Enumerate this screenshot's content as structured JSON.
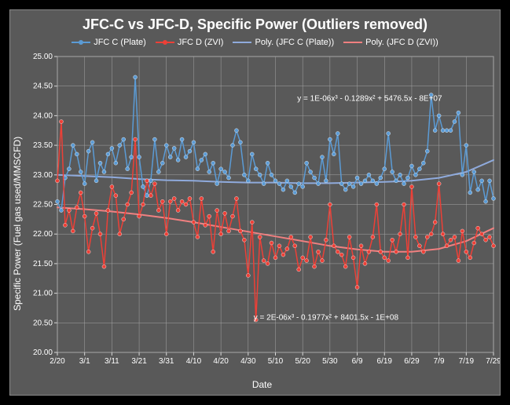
{
  "title": "JFC-C vs JFC-D, Specific Power (Outliers removed)",
  "y_axis": {
    "label": "Specific Power (Fuel gas used/MMSCFD)",
    "ylim": [
      20.0,
      25.0
    ],
    "ytick_step": 0.5,
    "fontsize": 12
  },
  "x_axis": {
    "label": "Date",
    "ticks": [
      "2/20",
      "3/1",
      "3/11",
      "3/21",
      "3/31",
      "4/10",
      "4/20",
      "4/30",
      "5/10",
      "5/20",
      "5/30",
      "6/9",
      "6/19",
      "6/29",
      "7/9",
      "7/19",
      "7/29"
    ],
    "fontsize": 12
  },
  "legend": {
    "items": [
      {
        "label": "JFC C (Plate)",
        "color": "#5b9bd5",
        "style": "line+marker"
      },
      {
        "label": "JFC D (ZVI)",
        "color": "#ed4037",
        "style": "line+marker"
      },
      {
        "label": "Poly. (JFC C (Plate))",
        "color": "#8faadc",
        "style": "line"
      },
      {
        "label": "Poly. (JFC D (ZVI))",
        "color": "#f08080",
        "style": "line"
      }
    ],
    "fontsize": 11
  },
  "equations": {
    "poly_c": "y = 1E-06x³ - 0.1289x² + 5476.5x - 8E+07",
    "poly_d": "y = 2E-06x³ - 0.1977x² + 8401.5x - 1E+08"
  },
  "series_c": {
    "color": "#5b9bd5",
    "marker_radius": 2.5,
    "line_width": 1.5,
    "values": [
      22.55,
      22.4,
      22.95,
      23.1,
      23.5,
      23.35,
      23.05,
      22.85,
      23.4,
      23.55,
      22.9,
      23.2,
      23.05,
      23.35,
      23.45,
      23.2,
      23.5,
      23.6,
      23.1,
      23.3,
      24.65,
      23.3,
      22.8,
      22.65,
      22.9,
      23.6,
      23.05,
      23.2,
      23.5,
      23.3,
      23.45,
      23.25,
      23.6,
      23.3,
      23.4,
      23.55,
      23.1,
      23.25,
      23.35,
      23.05,
      23.2,
      22.85,
      23.1,
      23.05,
      22.95,
      23.5,
      23.75,
      23.55,
      23.0,
      22.9,
      23.35,
      23.1,
      23.0,
      22.85,
      23.2,
      23.0,
      22.9,
      22.85,
      22.75,
      22.9,
      22.8,
      22.7,
      22.85,
      22.8,
      23.2,
      23.05,
      22.95,
      22.85,
      23.3,
      22.9,
      23.6,
      23.35,
      23.7,
      22.85,
      22.75,
      22.85,
      22.8,
      22.95,
      22.85,
      22.9,
      23.0,
      22.9,
      22.85,
      22.95,
      23.1,
      23.7,
      23.05,
      22.9,
      23.0,
      22.85,
      22.95,
      23.15,
      23.0,
      23.1,
      23.2,
      23.4,
      24.35,
      23.75,
      24.0,
      23.75,
      23.75,
      23.75,
      23.9,
      24.05,
      23.0,
      23.5,
      22.7,
      23.05,
      22.75,
      22.9,
      22.55,
      22.9,
      22.6
    ]
  },
  "series_d": {
    "color": "#ed4037",
    "marker_radius": 2.5,
    "line_width": 1.5,
    "values": [
      22.9,
      23.9,
      22.15,
      22.4,
      22.05,
      22.45,
      22.7,
      22.3,
      21.7,
      22.1,
      22.35,
      22.0,
      21.45,
      22.4,
      22.8,
      22.65,
      22.0,
      22.25,
      22.5,
      22.7,
      23.6,
      22.3,
      22.5,
      22.9,
      22.65,
      22.85,
      22.4,
      22.55,
      22.0,
      22.55,
      22.6,
      22.4,
      22.55,
      22.5,
      22.6,
      22.2,
      21.95,
      22.6,
      22.15,
      22.3,
      21.7,
      22.4,
      22.0,
      22.35,
      22.05,
      22.3,
      22.6,
      22.05,
      21.9,
      21.3,
      22.2,
      20.55,
      21.95,
      21.55,
      21.5,
      21.85,
      21.6,
      21.8,
      21.65,
      21.75,
      21.95,
      21.8,
      21.4,
      21.6,
      21.55,
      21.95,
      21.45,
      21.7,
      21.55,
      21.9,
      22.5,
      21.8,
      21.7,
      21.65,
      21.45,
      21.95,
      21.6,
      21.1,
      21.8,
      21.5,
      21.7,
      21.95,
      22.5,
      21.7,
      21.6,
      21.55,
      21.9,
      21.7,
      22.0,
      22.5,
      21.6,
      22.8,
      21.95,
      21.8,
      21.7,
      21.95,
      22.0,
      22.2,
      22.85,
      22.0,
      21.8,
      21.9,
      21.95,
      21.55,
      22.05,
      21.7,
      21.6,
      21.85,
      22.1,
      22.0,
      21.9,
      21.95,
      21.8
    ]
  },
  "trend_c": {
    "color": "#8faadc",
    "line_width": 2,
    "values": [
      23.0,
      22.98,
      22.96,
      22.93,
      22.91,
      22.9,
      22.88,
      22.87,
      22.87,
      22.86,
      22.86,
      22.87,
      22.88,
      22.9,
      22.95,
      23.05,
      23.25
    ]
  },
  "trend_d": {
    "color": "#f08080",
    "line_width": 2,
    "values": [
      22.45,
      22.42,
      22.38,
      22.33,
      22.27,
      22.2,
      22.12,
      22.04,
      21.96,
      21.88,
      21.8,
      21.74,
      21.7,
      21.7,
      21.75,
      21.88,
      22.1
    ]
  },
  "plot_style": {
    "background_color": "#595959",
    "grid_color": "#a6a6a6",
    "axis_color": "#d9d9d9",
    "tick_color": "#d9d9d9",
    "plot_border_color": "#a6a6a6"
  }
}
